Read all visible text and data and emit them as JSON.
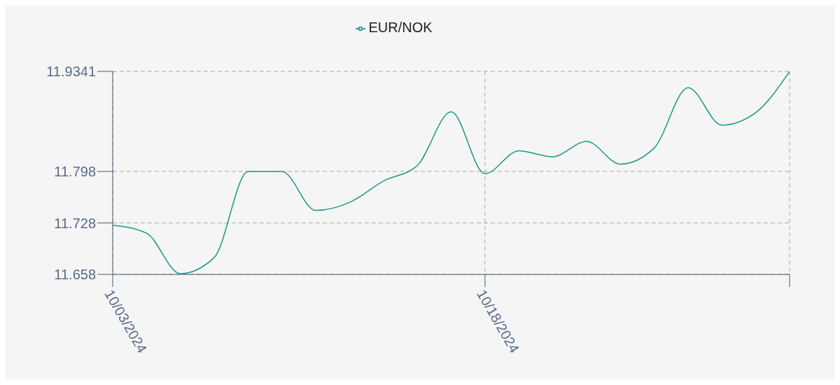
{
  "chart_data": {
    "type": "line",
    "categories": [
      "10/03/2024",
      null,
      null,
      null,
      null,
      null,
      null,
      null,
      null,
      null,
      null,
      "10/18/2024",
      null,
      null,
      null,
      null,
      null,
      null,
      null,
      null,
      null
    ],
    "series": [
      {
        "name": "EUR/NOK",
        "color": "#17998a",
        "values": [
          11.725,
          11.714,
          11.659,
          11.681,
          11.798,
          11.798,
          11.745,
          11.756,
          11.785,
          11.806,
          11.879,
          11.795,
          11.826,
          11.818,
          11.839,
          11.808,
          11.83,
          11.912,
          11.861,
          11.878,
          11.9341
        ]
      }
    ],
    "ylim": [
      11.658,
      11.9341
    ],
    "yticks": [
      11.658,
      11.728,
      11.798,
      11.9341
    ],
    "grid": true,
    "legend": "top",
    "marker": "none",
    "line_style": "solid"
  }
}
